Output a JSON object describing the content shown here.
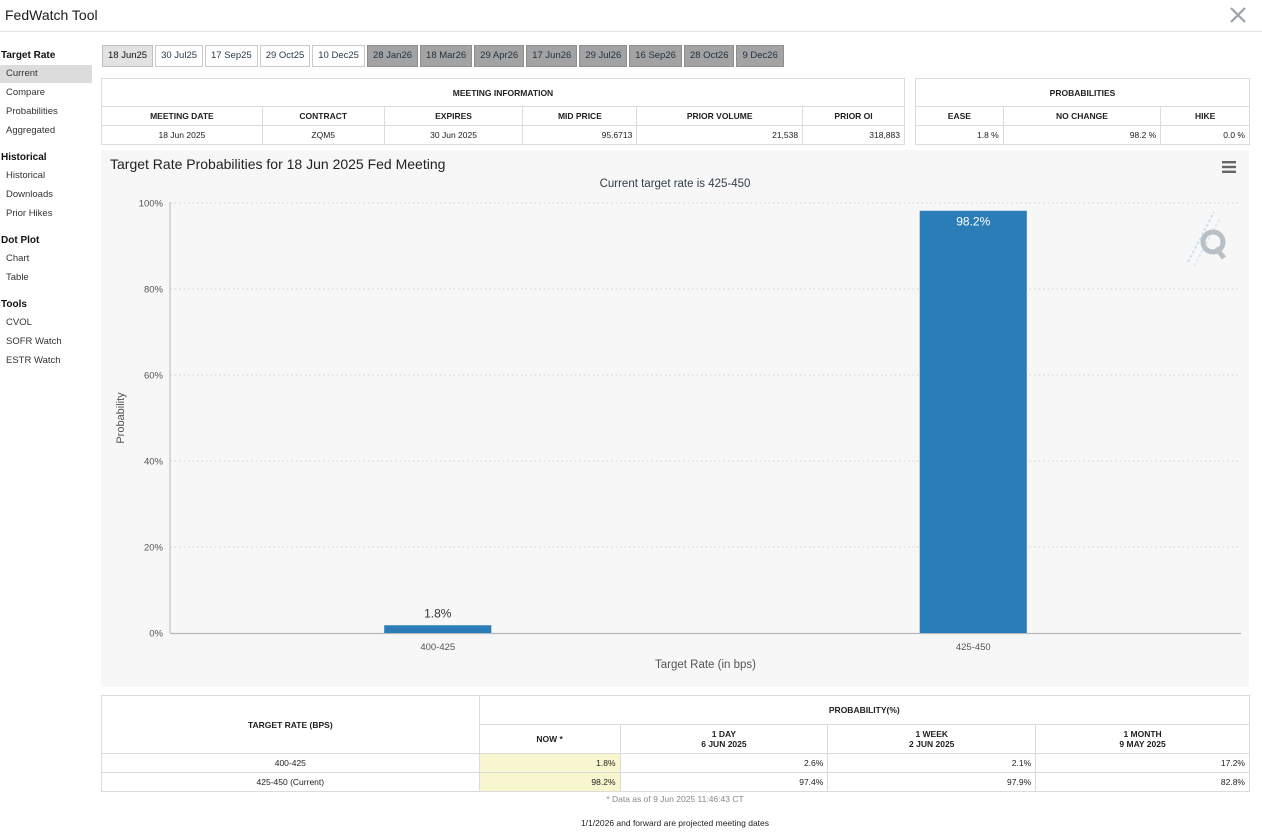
{
  "app": {
    "title": "FedWatch Tool"
  },
  "sidebar": {
    "sections": [
      {
        "title": "Target Rate",
        "items": [
          {
            "label": "Current",
            "active": true
          },
          {
            "label": "Compare"
          },
          {
            "label": "Probabilities"
          },
          {
            "label": "Aggregated"
          }
        ]
      },
      {
        "title": "Historical",
        "items": [
          {
            "label": "Historical"
          },
          {
            "label": "Downloads"
          },
          {
            "label": "Prior Hikes"
          }
        ]
      },
      {
        "title": "Dot Plot",
        "items": [
          {
            "label": "Chart"
          },
          {
            "label": "Table"
          }
        ]
      },
      {
        "title": "Tools",
        "items": [
          {
            "label": "CVOL"
          },
          {
            "label": "SOFR Watch"
          },
          {
            "label": "ESTR Watch"
          }
        ]
      }
    ]
  },
  "meeting_tabs": [
    {
      "label": "18 Jun25",
      "state": "selected"
    },
    {
      "label": "30 Jul25",
      "state": "normal"
    },
    {
      "label": "17 Sep25",
      "state": "normal"
    },
    {
      "label": "29 Oct25",
      "state": "normal"
    },
    {
      "label": "10 Dec25",
      "state": "normal"
    },
    {
      "label": "28 Jan26",
      "state": "projected"
    },
    {
      "label": "18 Mar26",
      "state": "projected"
    },
    {
      "label": "29 Apr26",
      "state": "projected"
    },
    {
      "label": "17 Jun26",
      "state": "projected"
    },
    {
      "label": "29 Jul26",
      "state": "projected"
    },
    {
      "label": "16 Sep26",
      "state": "projected"
    },
    {
      "label": "28 Oct26",
      "state": "projected"
    },
    {
      "label": "9 Dec26",
      "state": "projected"
    }
  ],
  "meeting_info": {
    "heading": "MEETING INFORMATION",
    "columns": [
      "MEETING DATE",
      "CONTRACT",
      "EXPIRES",
      "MID PRICE",
      "PRIOR VOLUME",
      "PRIOR OI"
    ],
    "row": [
      "18 Jun 2025",
      "ZQM5",
      "30 Jun 2025",
      "95.6713",
      "21,538",
      "318,883"
    ]
  },
  "probabilities": {
    "heading": "PROBABILITIES",
    "columns": [
      "EASE",
      "NO CHANGE",
      "HIKE"
    ],
    "row": [
      "1.8 %",
      "98.2 %",
      "0.0 %"
    ]
  },
  "chart": {
    "title": "Target Rate Probabilities for 18 Jun 2025 Fed Meeting",
    "subtitle": "Current target rate is 425-450",
    "menu_icon": "hamburger-menu-icon",
    "watermark_icon": "q-logo-icon",
    "bar_color": "#2b7db8"
  },
  "chart_data": {
    "type": "bar",
    "title": "Target Rate Probabilities for 18 Jun 2025 Fed Meeting",
    "subtitle": "Current target rate is 425-450",
    "xlabel": "Target Rate (in bps)",
    "ylabel": "Probability",
    "categories": [
      "400-425",
      "425-450"
    ],
    "values": [
      1.8,
      98.2
    ],
    "data_labels": [
      "1.8%",
      "98.2%"
    ],
    "ylim": [
      0,
      100
    ],
    "yticks": [
      0,
      20,
      40,
      60,
      80,
      100
    ],
    "ytick_labels": [
      "0%",
      "20%",
      "40%",
      "60%",
      "80%",
      "100%"
    ],
    "grid": true,
    "legend": "none"
  },
  "bottom_table": {
    "target_rate_header": "TARGET RATE (BPS)",
    "probability_header": "PROBABILITY(%)",
    "sub_headers": [
      {
        "line1": "NOW *",
        "line2": ""
      },
      {
        "line1": "1 DAY",
        "line2": "6 JUN 2025"
      },
      {
        "line1": "1 WEEK",
        "line2": "2 JUN 2025"
      },
      {
        "line1": "1 MONTH",
        "line2": "9 MAY 2025"
      }
    ],
    "rows": [
      {
        "rate": "400-425",
        "values": [
          "1.8%",
          "2.6%",
          "2.1%",
          "17.2%"
        ]
      },
      {
        "rate": "425-450 (Current)",
        "values": [
          "98.2%",
          "97.4%",
          "97.9%",
          "82.8%"
        ]
      }
    ],
    "highlight_color": "#f8f6cf"
  },
  "footnote": "* Data as of 9 Jun 2025 11:46:43 CT",
  "projected_note": "1/1/2026 and forward are projected meeting dates"
}
